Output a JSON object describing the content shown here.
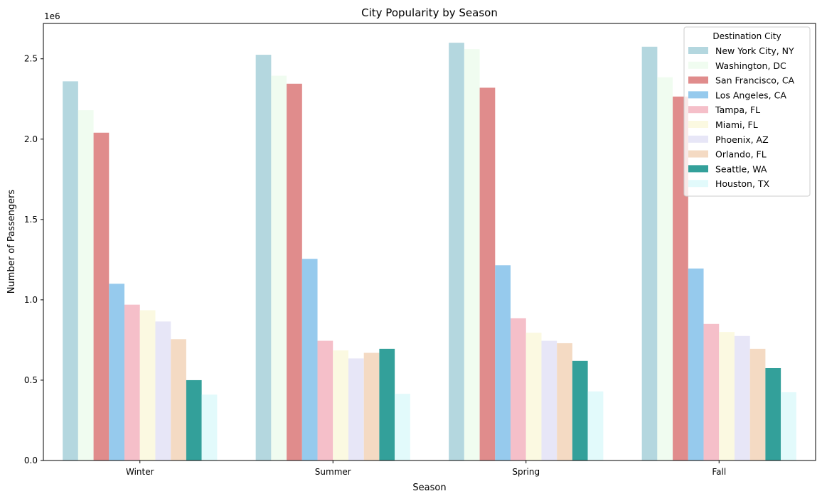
{
  "chart_data": {
    "type": "bar",
    "title": "City Popularity by Season",
    "xlabel": "Season",
    "ylabel": "Number of Passengers",
    "y_offset_label": "1e6",
    "categories": [
      "Winter",
      "Summer",
      "Spring",
      "Fall"
    ],
    "ylim": [
      0,
      2720000
    ],
    "yticks": [
      0,
      500000,
      1000000,
      1500000,
      2000000,
      2500000
    ],
    "ytick_labels": [
      "0.0",
      "0.5",
      "1.0",
      "1.5",
      "2.0",
      "2.5"
    ],
    "legend_title": "Destination City",
    "legend_position": "top-right",
    "grid": false,
    "series": [
      {
        "name": "New York City, NY",
        "color": "#b4d7df",
        "values": [
          2360000,
          2525000,
          2600000,
          2575000
        ]
      },
      {
        "name": "Washington, DC",
        "color": "#f0fcf0",
        "values": [
          2180000,
          2395000,
          2560000,
          2385000
        ]
      },
      {
        "name": "San Francisco, CA",
        "color": "#e08c8c",
        "values": [
          2040000,
          2345000,
          2320000,
          2265000
        ]
      },
      {
        "name": "Los Angeles, CA",
        "color": "#96caed",
        "values": [
          1100000,
          1255000,
          1215000,
          1195000
        ]
      },
      {
        "name": "Tampa, FL",
        "color": "#f5bfc9",
        "values": [
          970000,
          745000,
          885000,
          850000
        ]
      },
      {
        "name": "Miami, FL",
        "color": "#fbf9e1",
        "values": [
          935000,
          685000,
          795000,
          800000
        ]
      },
      {
        "name": "Phoenix, AZ",
        "color": "#e7e6f7",
        "values": [
          865000,
          635000,
          745000,
          775000
        ]
      },
      {
        "name": "Orlando, FL",
        "color": "#f4dac3",
        "values": [
          755000,
          670000,
          730000,
          695000
        ]
      },
      {
        "name": "Seattle, WA",
        "color": "#33a09a",
        "values": [
          500000,
          695000,
          620000,
          575000
        ]
      },
      {
        "name": "Houston, TX",
        "color": "#e2fafb",
        "values": [
          410000,
          415000,
          430000,
          425000
        ]
      }
    ]
  }
}
